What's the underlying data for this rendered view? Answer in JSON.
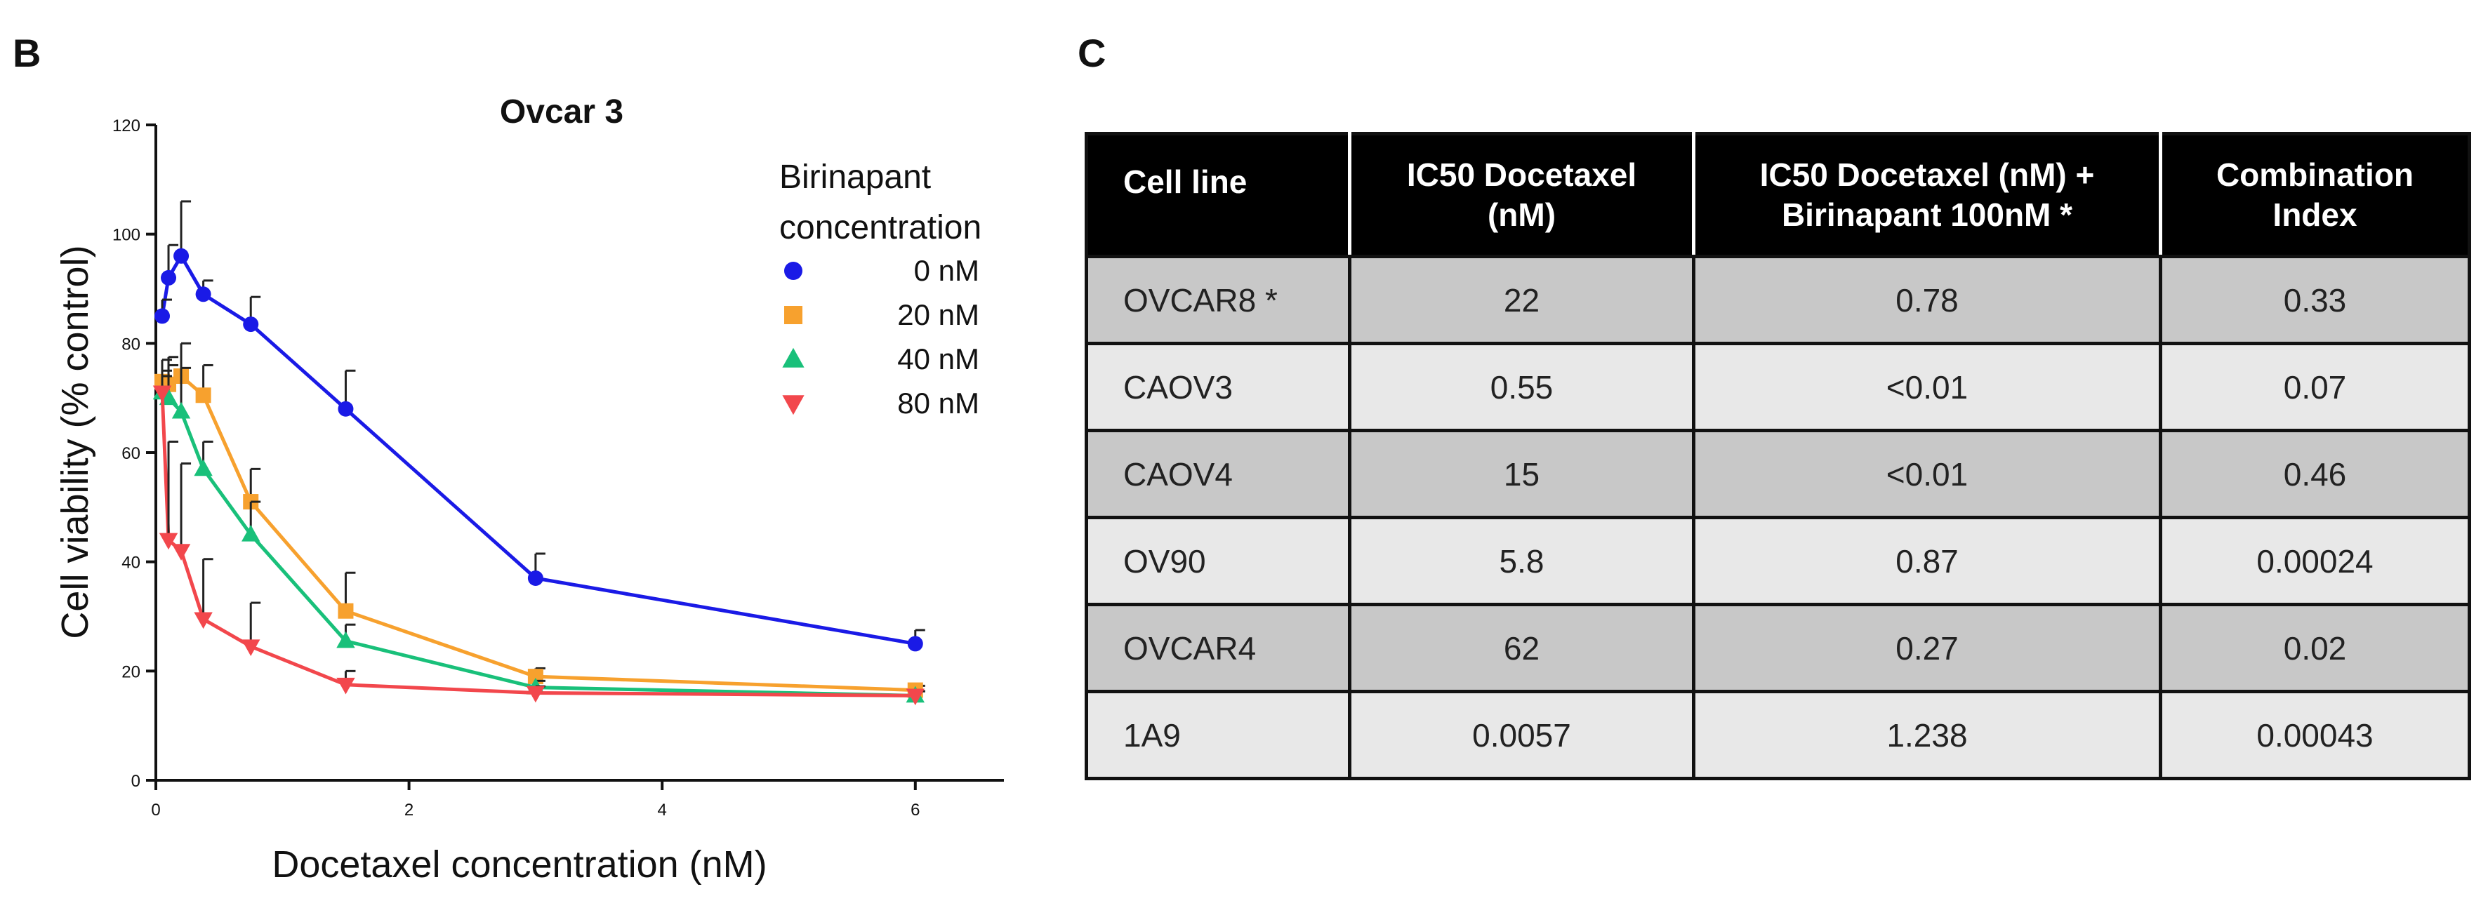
{
  "panel_b_label": "B",
  "panel_c_label": "C",
  "colors": {
    "s0": "#1a1ae6",
    "s20": "#f7a12e",
    "s40": "#19c07a",
    "s80": "#f2474c",
    "table_header_bg": "#000000",
    "row_dark": "#c8c8c8",
    "row_light": "#e8e8e8"
  },
  "chart_data": {
    "type": "line",
    "title": "Ovcar 3",
    "xlabel": "Docetaxel concentration (nM)",
    "ylabel": "Cell viability (% control)",
    "xlim": [
      0,
      6.7
    ],
    "ylim": [
      0,
      120
    ],
    "xticks": [
      0,
      2,
      4,
      6
    ],
    "yticks": [
      0,
      20,
      40,
      60,
      80,
      100,
      120
    ],
    "legend_title": "Birinapant concentration",
    "legend_title_lines": [
      "Birinapant",
      "concentration"
    ],
    "legend_position": "top-right",
    "series": [
      {
        "name": "0 nM",
        "marker": "circle",
        "color": "#1a1ae6",
        "x": [
          0.05,
          0.1,
          0.2,
          0.375,
          0.75,
          1.5,
          3,
          6
        ],
        "y": [
          85,
          92,
          96,
          89,
          83.5,
          68,
          37,
          25
        ],
        "err": [
          3,
          6,
          10,
          2.5,
          5,
          7,
          4.5,
          2.5
        ]
      },
      {
        "name": "20 nM",
        "marker": "square",
        "color": "#f7a12e",
        "x": [
          0.05,
          0.1,
          0.2,
          0.375,
          0.75,
          1.5,
          3,
          6
        ],
        "y": [
          73,
          72.5,
          74,
          70.5,
          51,
          31,
          19,
          16.5
        ],
        "err": [
          4,
          5,
          6,
          5.5,
          6,
          7,
          1.5,
          0.8
        ]
      },
      {
        "name": "40 nM",
        "marker": "triangle-up",
        "color": "#19c07a",
        "x": [
          0.05,
          0.1,
          0.2,
          0.375,
          0.75,
          1.5,
          3,
          6
        ],
        "y": [
          71,
          70,
          67.5,
          57,
          45,
          25.5,
          17,
          15.5
        ],
        "err": [
          4,
          6,
          8,
          5,
          6,
          3,
          1.2,
          0.8
        ]
      },
      {
        "name": "80 nM",
        "marker": "triangle-down",
        "color": "#f2474c",
        "x": [
          0.05,
          0.1,
          0.2,
          0.375,
          0.75,
          1.5,
          3,
          6
        ],
        "y": [
          71,
          44,
          42,
          29.5,
          24.5,
          17.5,
          16,
          15.5
        ],
        "err": [
          3,
          18,
          16,
          11,
          8,
          2.5,
          1.2,
          0.8
        ]
      }
    ]
  },
  "table": {
    "headers": [
      [
        "Cell line"
      ],
      [
        "IC50 Docetaxel",
        "(nM)"
      ],
      [
        "IC50 Docetaxel (nM) +",
        "Birinapant 100nM *"
      ],
      [
        "Combination",
        "Index"
      ]
    ],
    "rows": [
      [
        "OVCAR8 *",
        "22",
        "0.78",
        "0.33"
      ],
      [
        "CAOV3",
        "0.55",
        "<0.01",
        "0.07"
      ],
      [
        "CAOV4",
        "15",
        "<0.01",
        "0.46"
      ],
      [
        "OV90",
        "5.8",
        "0.87",
        "0.00024"
      ],
      [
        "OVCAR4",
        "62",
        "0.27",
        "0.02"
      ],
      [
        "1A9",
        "0.0057",
        "1.238",
        "0.00043"
      ]
    ]
  }
}
